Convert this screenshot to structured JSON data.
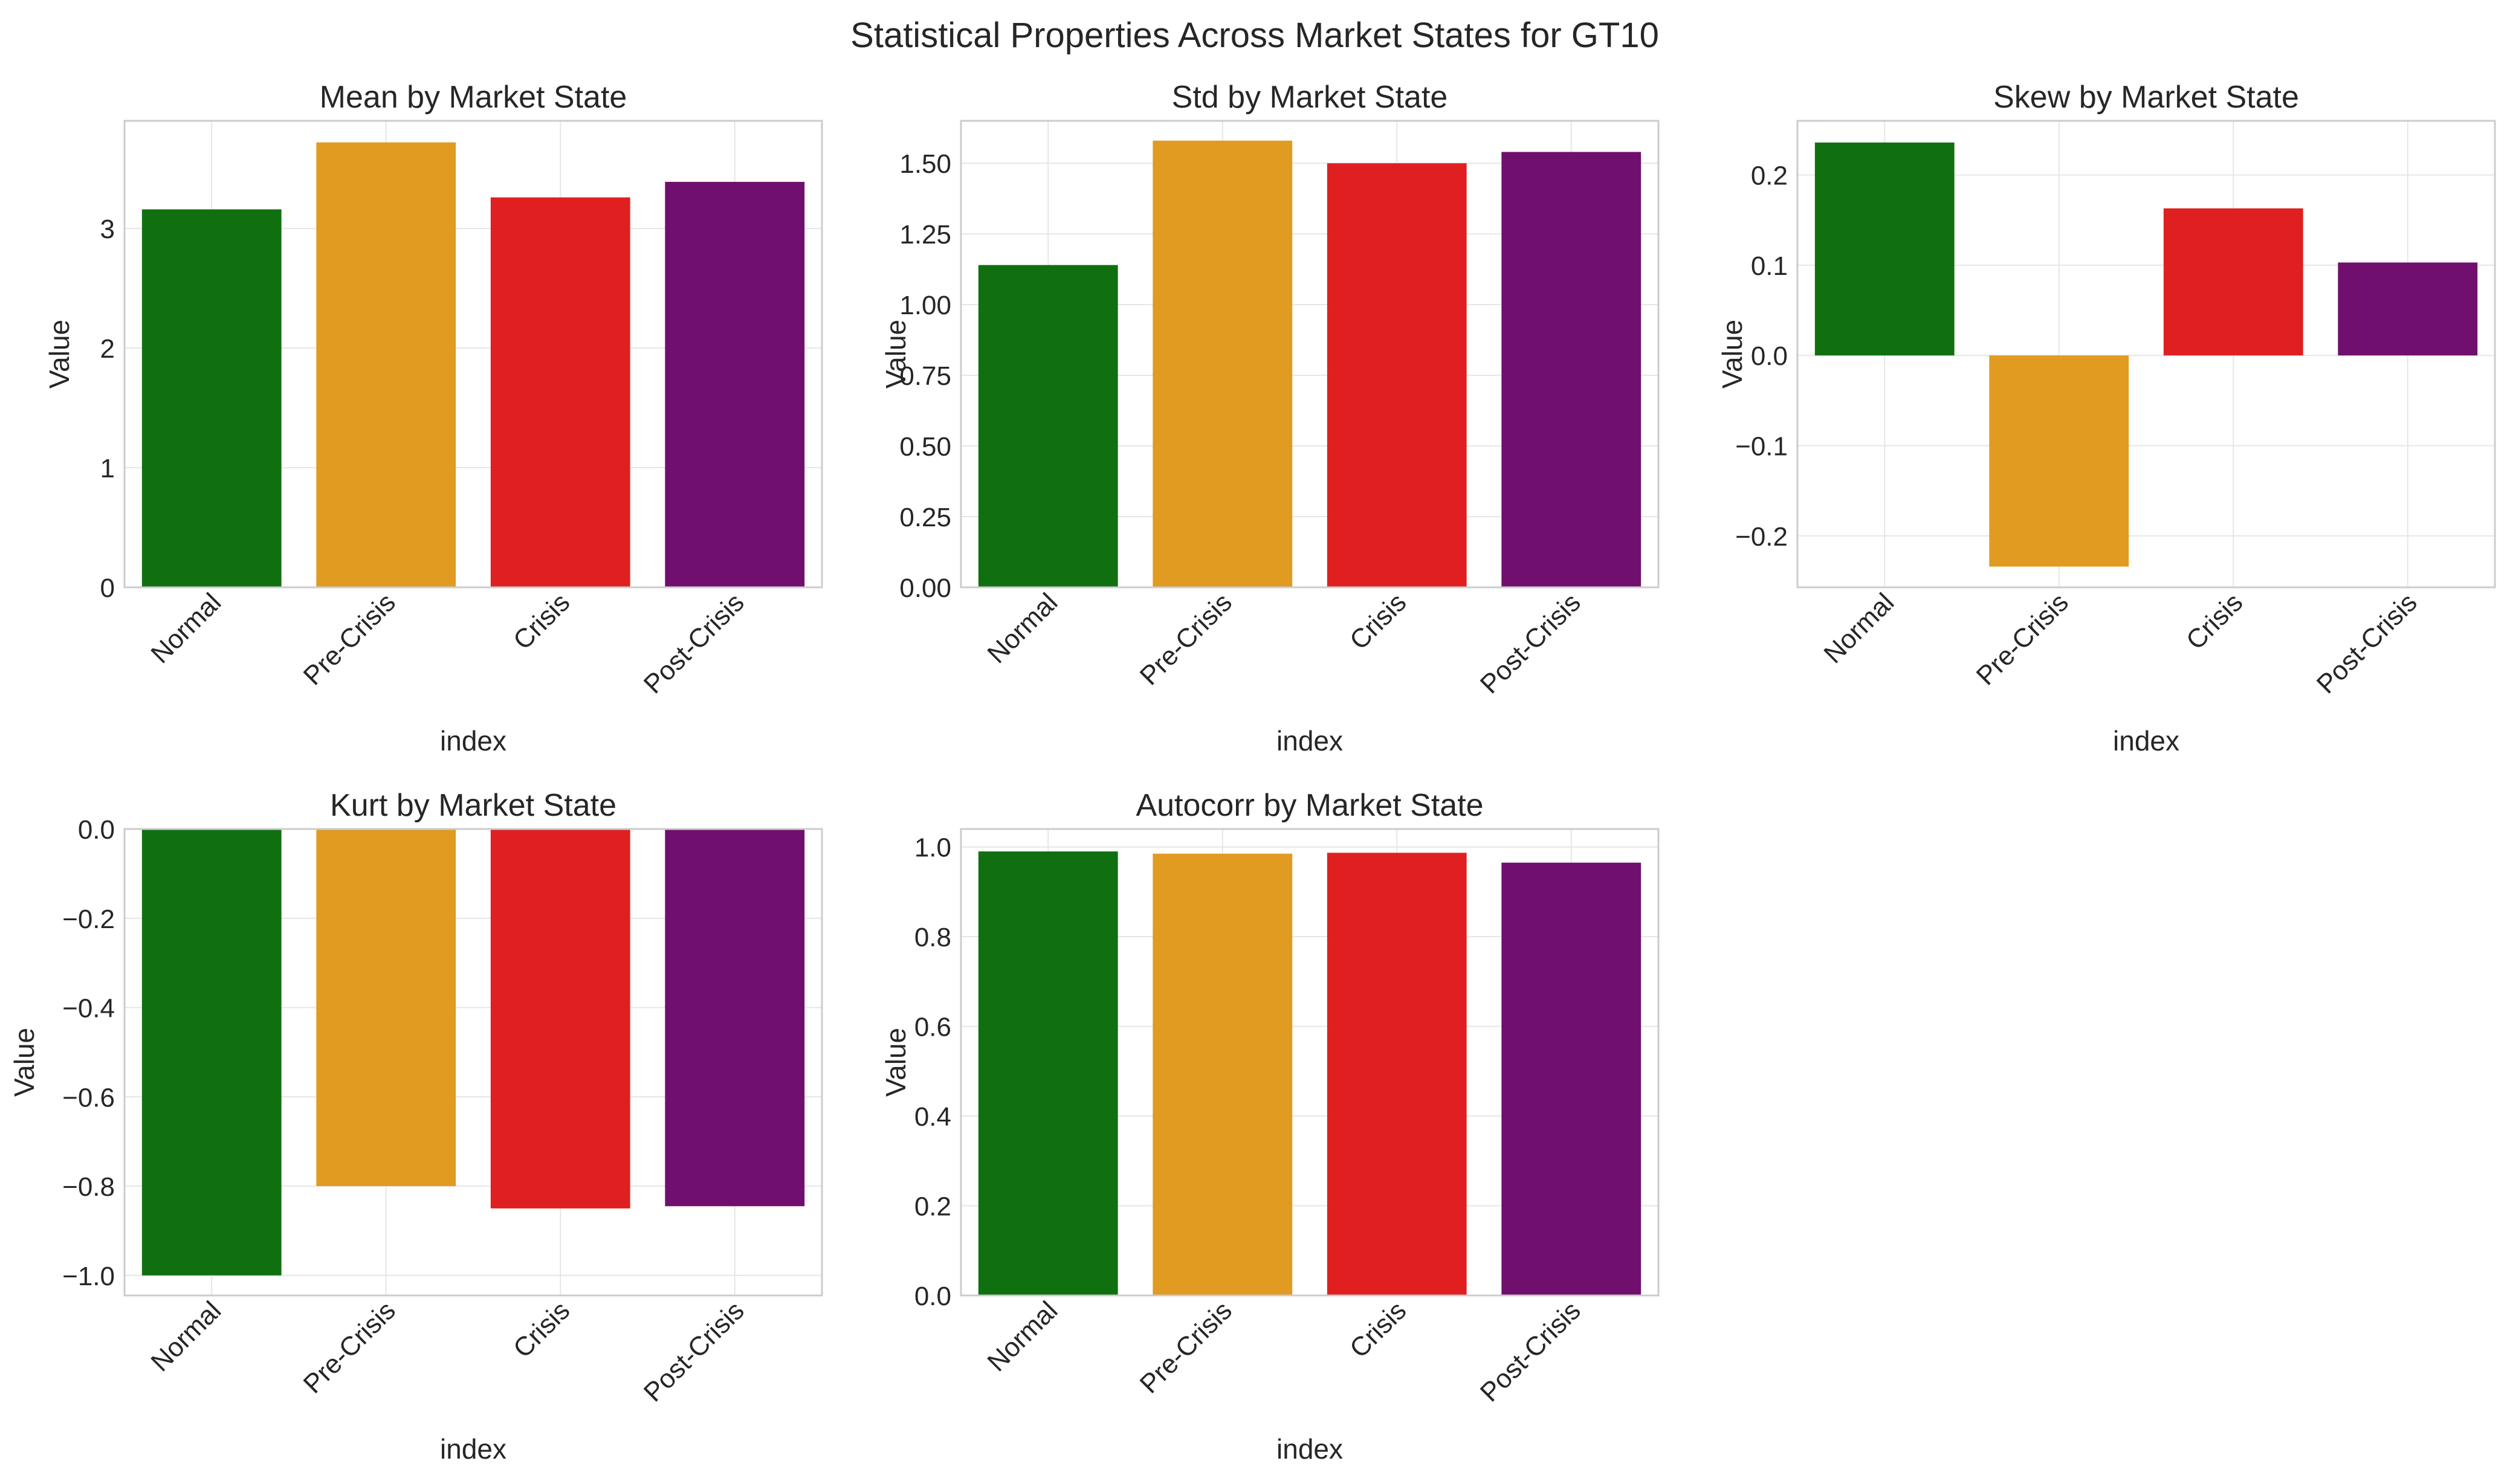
{
  "figure": {
    "suptitle": "Statistical Properties Across Market States for GT10",
    "colors": {
      "Normal": "#107010",
      "Pre-Crisis": "#e09b20",
      "Crisis": "#e02020",
      "Post-Crisis": "#700f6e",
      "grid": "#e6e6e6",
      "spine": "#cccccc",
      "text": "#262626"
    }
  },
  "chart_data": [
    {
      "type": "bar",
      "title": "Mean by Market State",
      "xlabel": "index",
      "ylabel": "Value",
      "categories": [
        "Normal",
        "Pre-Crisis",
        "Crisis",
        "Post-Crisis"
      ],
      "values": [
        3.16,
        3.72,
        3.26,
        3.39
      ],
      "ylim": [
        0,
        3.9
      ],
      "yticks": [
        0,
        1,
        2,
        3
      ],
      "ytick_labels": [
        "0",
        "1",
        "2",
        "3"
      ],
      "grid": true
    },
    {
      "type": "bar",
      "title": "Std by Market State",
      "xlabel": "index",
      "ylabel": "Value",
      "categories": [
        "Normal",
        "Pre-Crisis",
        "Crisis",
        "Post-Crisis"
      ],
      "values": [
        1.14,
        1.58,
        1.5,
        1.54
      ],
      "ylim": [
        0,
        1.65
      ],
      "yticks": [
        0,
        0.25,
        0.5,
        0.75,
        1.0,
        1.25,
        1.5
      ],
      "ytick_labels": [
        "0.00",
        "0.25",
        "0.50",
        "0.75",
        "1.00",
        "1.25",
        "1.50"
      ],
      "grid": true
    },
    {
      "type": "bar",
      "title": "Skew by Market State",
      "xlabel": "index",
      "ylabel": "Value",
      "categories": [
        "Normal",
        "Pre-Crisis",
        "Crisis",
        "Post-Crisis"
      ],
      "values": [
        0.236,
        -0.234,
        0.163,
        0.103
      ],
      "ylim": [
        -0.257,
        0.26
      ],
      "yticks": [
        -0.2,
        -0.1,
        0.0,
        0.1,
        0.2
      ],
      "ytick_labels": [
        "−0.2",
        "−0.1",
        "0.0",
        "0.1",
        "0.2"
      ],
      "grid": true
    },
    {
      "type": "bar",
      "title": "Kurt by Market State",
      "xlabel": "index",
      "ylabel": "Value",
      "categories": [
        "Normal",
        "Pre-Crisis",
        "Crisis",
        "Post-Crisis"
      ],
      "values": [
        -1.0,
        -0.8,
        -0.85,
        -0.845
      ],
      "ylim": [
        -1.045,
        0
      ],
      "yticks": [
        -1.0,
        -0.8,
        -0.6,
        -0.4,
        -0.2,
        0.0
      ],
      "ytick_labels": [
        "−1.0",
        "−0.8",
        "−0.6",
        "−0.4",
        "−0.2",
        "0.0"
      ],
      "grid": true
    },
    {
      "type": "bar",
      "title": "Autocorr by Market State",
      "xlabel": "index",
      "ylabel": "Value",
      "categories": [
        "Normal",
        "Pre-Crisis",
        "Crisis",
        "Post-Crisis"
      ],
      "values": [
        0.99,
        0.985,
        0.987,
        0.965
      ],
      "ylim": [
        0,
        1.04
      ],
      "yticks": [
        0,
        0.2,
        0.4,
        0.6,
        0.8,
        1.0
      ],
      "ytick_labels": [
        "0.0",
        "0.2",
        "0.4",
        "0.6",
        "0.8",
        "1.0"
      ],
      "grid": true
    }
  ]
}
